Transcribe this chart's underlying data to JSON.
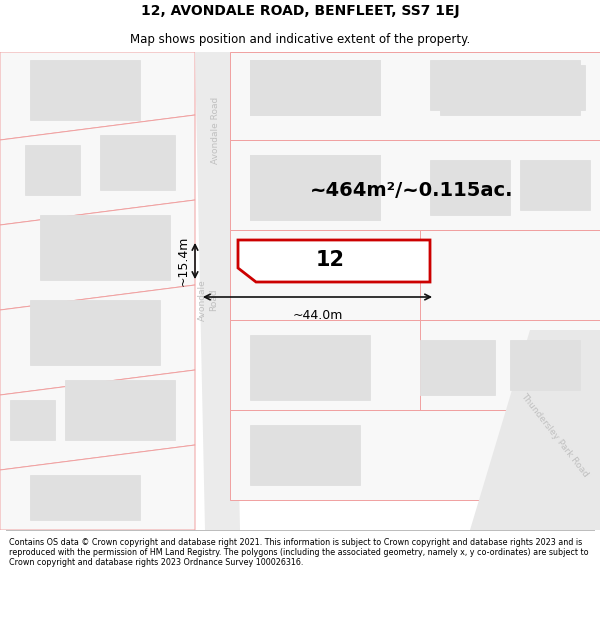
{
  "title_line1": "12, AVONDALE ROAD, BENFLEET, SS7 1EJ",
  "title_line2": "Map shows position and indicative extent of the property.",
  "area_text": "~464m²/~0.115ac.",
  "width_label": "~44.0m",
  "height_label": "~15.4m",
  "number_label": "12",
  "footer_text": "Contains OS data © Crown copyright and database right 2021. This information is subject to Crown copyright and database rights 2023 and is reproduced with the permission of HM Land Registry. The polygons (including the associated geometry, namely x, y co-ordinates) are subject to Crown copyright and database rights 2023 Ordnance Survey 100026316.",
  "bg_color": "#ffffff",
  "map_bg": "#ffffff",
  "building_fill": "#e0e0e0",
  "building_outline": "#e0e0e0",
  "plot_outline": "#f0a0a0",
  "highlight_outline": "#cc0000",
  "highlight_fill": "#ffffff",
  "road_color": "#d8d8d8",
  "road_label_color": "#c0c0c0",
  "dim_line_color": "#111111",
  "title_fontsize": 10,
  "subtitle_fontsize": 8.5,
  "footer_fontsize": 5.8
}
